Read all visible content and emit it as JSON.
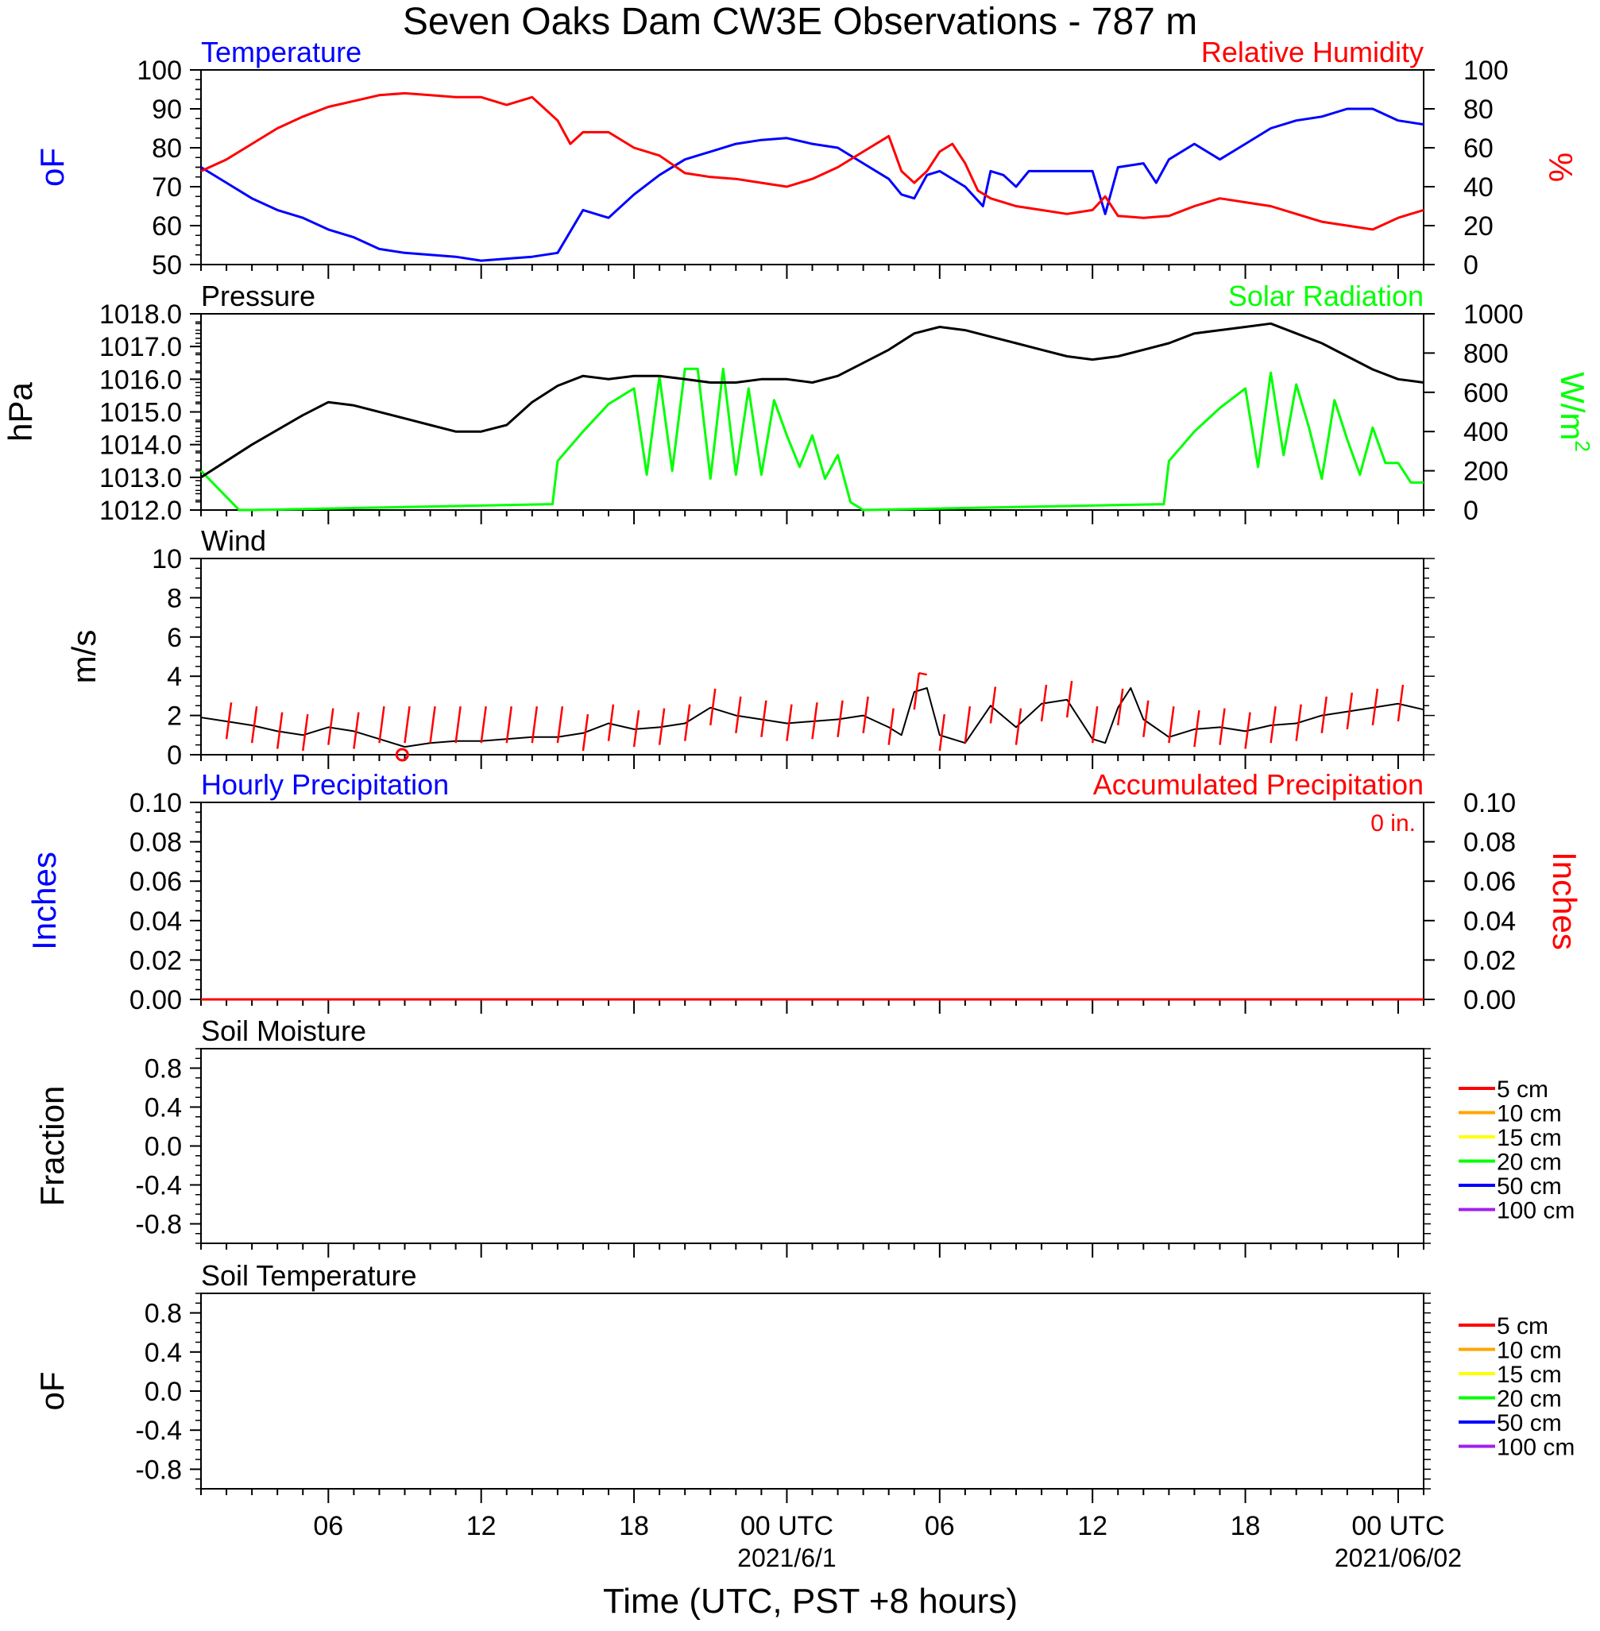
{
  "page_title": "Seven Oaks Dam CW3E Observations - 787 m",
  "x_axis": {
    "label": "Time (UTC, PST +8 hours)",
    "range_hours": [
      0,
      48
    ],
    "ticks": [
      {
        "hour": 5,
        "label": "06",
        "date": ""
      },
      {
        "hour": 11,
        "label": "12",
        "date": ""
      },
      {
        "hour": 17,
        "label": "18",
        "date": ""
      },
      {
        "hour": 23,
        "label": "00 UTC",
        "date": "2021/6/1"
      },
      {
        "hour": 29,
        "label": "06",
        "date": ""
      },
      {
        "hour": 35,
        "label": "12",
        "date": ""
      },
      {
        "hour": 41,
        "label": "18",
        "date": ""
      },
      {
        "hour": 47,
        "label": "00 UTC",
        "date": "2021/06/02"
      }
    ]
  },
  "colors": {
    "temperature": "#0000ff",
    "humidity": "#ff0000",
    "pressure": "#000000",
    "solar": "#00ff00",
    "wind": "#000000",
    "barb": "#ff0000",
    "hourly_precip": "#0000ff",
    "accum_precip": "#ff0000",
    "soil_5": "#ff0000",
    "soil_10": "#ffa500",
    "soil_15": "#ffff00",
    "soil_20": "#00ff00",
    "soil_50": "#0000ff",
    "soil_100": "#a020f0"
  },
  "panels": {
    "temp_rh": {
      "title_left": "Temperature",
      "title_right": "Relative Humidity",
      "left_unit": "oF",
      "right_unit": "%",
      "left_ticks": [
        "50",
        "60",
        "70",
        "80",
        "90",
        "100"
      ],
      "right_ticks": [
        "0",
        "20",
        "40",
        "60",
        "80",
        "100"
      ]
    },
    "pres_solar": {
      "title_left": "Pressure",
      "title_right": "Solar Radiation",
      "left_unit": "hPa",
      "right_unit": "W/m",
      "right_unit_sup": "2",
      "left_ticks": [
        "1012.0",
        "1013.0",
        "1014.0",
        "1015.0",
        "1016.0",
        "1017.0",
        "1018.0"
      ],
      "right_ticks": [
        "0",
        "200",
        "400",
        "600",
        "800",
        "1000"
      ]
    },
    "wind": {
      "title_left": "Wind",
      "left_unit": "m/s",
      "left_ticks": [
        "0",
        "2",
        "4",
        "6",
        "8",
        "10"
      ]
    },
    "precip": {
      "title_left": "Hourly Precipitation",
      "title_right": "Accumulated Precipitation",
      "total_label": "0 in.",
      "left_unit": "Inches",
      "right_unit": "Inches",
      "left_ticks": [
        "0.00",
        "0.02",
        "0.04",
        "0.06",
        "0.08",
        "0.10"
      ],
      "right_ticks": [
        "0.00",
        "0.02",
        "0.04",
        "0.06",
        "0.08",
        "0.10"
      ]
    },
    "soil_moisture": {
      "title_left": "Soil Moisture",
      "left_unit": "Fraction",
      "left_ticks": [
        "-0.8",
        "-0.4",
        "0.0",
        "0.4",
        "0.8"
      ]
    },
    "soil_temp": {
      "title_left": "Soil Temperature",
      "left_unit": "oF",
      "left_ticks": [
        "-0.8",
        "-0.4",
        "0.0",
        "0.4",
        "0.8"
      ]
    }
  },
  "legend": [
    "5 cm",
    "10 cm",
    "15 cm",
    "20 cm",
    "50 cm",
    "100 cm"
  ],
  "chart_data": [
    {
      "type": "line",
      "panel": "temp_rh",
      "x_unit": "hours since start of window (UTC)",
      "series": [
        {
          "name": "Temperature",
          "axis": "left",
          "unit": "°F",
          "x": [
            0,
            1,
            2,
            3,
            4,
            5,
            6,
            7,
            8,
            9,
            10,
            11,
            12,
            13,
            14,
            15,
            16,
            17,
            18,
            19,
            20,
            21,
            22,
            23,
            24,
            25,
            26,
            27,
            27.5,
            28,
            28.5,
            29,
            30,
            30.7,
            31,
            31.5,
            32,
            32.5,
            33,
            34,
            35,
            35.5,
            36,
            37,
            37.5,
            38,
            39,
            40,
            41,
            42,
            43,
            44,
            45,
            46,
            47,
            48
          ],
          "y": [
            75,
            71,
            67,
            64,
            62,
            59,
            57,
            54,
            53,
            52.5,
            52,
            51,
            51.5,
            52,
            53,
            64,
            62,
            68,
            73,
            77,
            79,
            81,
            82,
            82.5,
            81,
            80,
            76,
            72,
            68,
            67,
            73,
            74,
            70,
            65,
            74,
            73,
            70,
            74,
            74,
            74,
            74,
            63,
            75,
            76,
            71,
            77,
            81,
            77,
            81,
            85,
            87,
            88,
            90,
            90,
            87,
            86
          ]
        },
        {
          "name": "Relative Humidity",
          "axis": "right",
          "unit": "%",
          "x": [
            0,
            1,
            2,
            3,
            4,
            5,
            6,
            7,
            8,
            9,
            10,
            11,
            12,
            13,
            14,
            14.5,
            15,
            16,
            17,
            18,
            19,
            20,
            21,
            22,
            23,
            24,
            25,
            26,
            27,
            27.5,
            28,
            28.5,
            29,
            29.5,
            30,
            30.5,
            31,
            32,
            33,
            34,
            35,
            35.5,
            36,
            37,
            38,
            39,
            40,
            41,
            42,
            43,
            44,
            45,
            46,
            47,
            48
          ],
          "y": [
            48,
            54,
            62,
            70,
            76,
            81,
            84,
            87,
            88,
            87,
            86,
            86,
            82,
            86,
            74,
            62,
            68,
            68,
            60,
            56,
            47,
            45,
            44,
            42,
            40,
            44,
            50,
            58,
            66,
            48,
            42,
            48,
            58,
            62,
            52,
            38,
            34,
            30,
            28,
            26,
            28,
            35,
            25,
            24,
            25,
            30,
            34,
            32,
            30,
            26,
            22,
            20,
            18,
            24,
            28
          ]
        }
      ],
      "ylim_left": [
        50,
        100
      ],
      "ylim_right": [
        0,
        100
      ]
    },
    {
      "type": "line",
      "panel": "pres_solar",
      "x_unit": "hours since start of window (UTC)",
      "series": [
        {
          "name": "Pressure",
          "axis": "left",
          "unit": "hPa",
          "x": [
            0,
            2,
            4,
            5,
            6,
            8,
            9,
            10,
            11,
            12,
            13,
            14,
            15,
            16,
            17,
            18,
            19,
            20,
            21,
            22,
            23,
            24,
            25,
            26,
            27,
            28,
            29,
            30,
            31,
            32,
            33,
            34,
            35,
            36,
            37,
            38,
            39,
            40,
            41,
            42,
            43,
            44,
            45,
            46,
            47,
            48
          ],
          "y": [
            1013.0,
            1014.0,
            1014.9,
            1015.3,
            1015.2,
            1014.8,
            1014.6,
            1014.4,
            1014.4,
            1014.6,
            1015.3,
            1015.8,
            1016.1,
            1016.0,
            1016.1,
            1016.1,
            1016.0,
            1015.9,
            1015.9,
            1016.0,
            1016.0,
            1015.9,
            1016.1,
            1016.5,
            1016.9,
            1017.4,
            1017.6,
            1017.5,
            1017.3,
            1017.1,
            1016.9,
            1016.7,
            1016.6,
            1016.7,
            1016.9,
            1017.1,
            1017.4,
            1017.5,
            1017.6,
            1017.7,
            1017.4,
            1017.1,
            1016.7,
            1016.3,
            1016.0,
            1015.9
          ]
        },
        {
          "name": "Solar Radiation",
          "axis": "right",
          "unit": "W/m2",
          "x": [
            0,
            1.5,
            2,
            13.8,
            14,
            15,
            16,
            17,
            17.5,
            18,
            18.5,
            19,
            19.5,
            20,
            20.5,
            21,
            21.5,
            22,
            22.5,
            23,
            23.5,
            24,
            24.5,
            25,
            25.5,
            26,
            37.8,
            38,
            39,
            40,
            41,
            41.5,
            42,
            42.5,
            43,
            43.5,
            44,
            44.5,
            45,
            45.5,
            46,
            46.5,
            47,
            47.5,
            48
          ],
          "y": [
            200,
            0,
            0,
            30,
            250,
            400,
            540,
            620,
            180,
            680,
            200,
            720,
            720,
            160,
            720,
            180,
            620,
            180,
            560,
            380,
            220,
            380,
            160,
            280,
            40,
            0,
            30,
            250,
            400,
            520,
            620,
            220,
            700,
            280,
            640,
            420,
            160,
            560,
            360,
            180,
            420,
            240,
            240,
            140,
            140
          ]
        }
      ],
      "ylim_left": [
        1012,
        1018
      ],
      "ylim_right": [
        0,
        1000
      ]
    },
    {
      "type": "line",
      "panel": "wind",
      "x_unit": "hours since start of window (UTC)",
      "series": [
        {
          "name": "Wind",
          "unit": "m/s",
          "x": [
            0,
            1,
            2,
            3,
            4,
            5,
            6,
            7,
            8,
            9,
            10,
            11,
            12,
            13,
            14,
            15,
            16,
            17,
            18,
            19,
            20,
            21,
            22,
            23,
            24,
            25,
            26,
            27,
            27.5,
            28,
            28.5,
            29,
            30,
            31,
            32,
            33,
            34,
            35,
            35.5,
            36,
            36.5,
            37,
            38,
            39,
            40,
            41,
            42,
            43,
            44,
            45,
            46,
            47,
            48
          ],
          "y": [
            1.9,
            1.7,
            1.5,
            1.2,
            1.0,
            1.4,
            1.2,
            0.8,
            0.4,
            0.6,
            0.7,
            0.7,
            0.8,
            0.9,
            0.9,
            1.1,
            1.6,
            1.3,
            1.4,
            1.6,
            2.4,
            2.0,
            1.8,
            1.6,
            1.7,
            1.8,
            2.0,
            1.4,
            1.0,
            3.2,
            3.4,
            1.0,
            0.6,
            2.5,
            1.4,
            2.6,
            2.8,
            0.8,
            0.6,
            2.4,
            3.4,
            1.8,
            0.9,
            1.3,
            1.4,
            1.2,
            1.5,
            1.6,
            2.0,
            2.2,
            2.4,
            2.6,
            2.3
          ]
        }
      ],
      "ylim": [
        0,
        10
      ]
    },
    {
      "type": "line",
      "panel": "precip",
      "series": [
        {
          "name": "Hourly Precipitation",
          "unit": "in",
          "x": [
            0,
            48
          ],
          "y": [
            0,
            0
          ]
        },
        {
          "name": "Accumulated Precipitation",
          "unit": "in",
          "x": [
            0,
            48
          ],
          "y": [
            0,
            0
          ]
        }
      ],
      "ylim": [
        0,
        0.1
      ]
    },
    {
      "type": "line",
      "panel": "soil_moisture",
      "series": [],
      "ylim": [
        -1,
        1
      ]
    },
    {
      "type": "line",
      "panel": "soil_temp",
      "series": [],
      "ylim": [
        -1,
        1
      ]
    }
  ]
}
